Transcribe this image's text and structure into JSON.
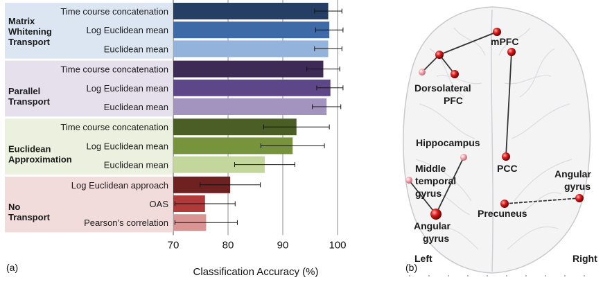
{
  "panel_labels": {
    "a": "(a)",
    "b": "(b)"
  },
  "chart_data": {
    "type": "bar",
    "orientation": "horizontal",
    "title": "",
    "xlabel": "Classification Accuracy (%)",
    "ylabel": "",
    "xlim": [
      70,
      100
    ],
    "xticks": [
      70,
      80,
      90,
      100
    ],
    "grid": true,
    "groups": [
      {
        "name": "Matrix Whitening Transport",
        "name_lines": [
          "Matrix",
          "Whitening",
          "Transport"
        ],
        "bg": "#dce6f2",
        "bars": [
          {
            "label": "Time course concatenation",
            "value": 98.3,
            "err": 2.5,
            "color": "#253f64"
          },
          {
            "label": "Log Euclidean mean",
            "value": 98.5,
            "err": 2.5,
            "color": "#3e6aa7"
          },
          {
            "label": "Euclidean mean",
            "value": 98.3,
            "err": 2.5,
            "color": "#94b3dc"
          }
        ]
      },
      {
        "name": "Parallel Transport",
        "name_lines": [
          "Parallel",
          "Transport"
        ],
        "bg": "#e5e0ec",
        "bars": [
          {
            "label": "Time course concatenation",
            "value": 97.4,
            "err": 3.0,
            "color": "#3d2b56"
          },
          {
            "label": "Log Euclidean mean",
            "value": 98.7,
            "err": 2.5,
            "color": "#5e4788"
          },
          {
            "label": "Euclidean mean",
            "value": 98.0,
            "err": 2.6,
            "color": "#a293bf"
          }
        ]
      },
      {
        "name": "Euclidean Approximation",
        "name_lines": [
          "Euclidean",
          "Approximation"
        ],
        "bg": "#ebf1de",
        "bars": [
          {
            "label": "Time course concatenation",
            "value": 92.5,
            "err": 6.0,
            "color": "#4a5e26"
          },
          {
            "label": "Log Euclidean mean",
            "value": 91.8,
            "err": 5.8,
            "color": "#77933c"
          },
          {
            "label": "Euclidean mean",
            "value": 86.7,
            "err": 5.5,
            "color": "#c3d69b"
          }
        ]
      },
      {
        "name": "No Transport",
        "name_lines": [
          "No",
          "Transport"
        ],
        "bg": "#f2dcdb",
        "bars": [
          {
            "label": "Log Euclidean approach",
            "value": 80.4,
            "err": 5.5,
            "color": "#6f2020"
          },
          {
            "label": "OAS",
            "value": 75.8,
            "err": 5.5,
            "color": "#b03a3a"
          },
          {
            "label": "Pearson’s correlation",
            "value": 76.0,
            "err": 5.7,
            "color": "#d99594"
          }
        ]
      }
    ]
  },
  "brain": {
    "orientation_left": "Left",
    "orientation_right": "Right",
    "labels": {
      "mpfc": "mPFC",
      "dlpfc_1": "Dorsolateral",
      "dlpfc_2": "PFC",
      "hippocampus": "Hippocampus",
      "mtg_1": "Middle",
      "mtg_2": "temporal",
      "mtg_3": "gyrus",
      "pcc": "PCC",
      "angular_l_1": "Angular",
      "angular_l_2": "gyrus",
      "angular_r_1": "Angular",
      "angular_r_2": "gyrus",
      "precuneus": "Precuneus"
    }
  }
}
